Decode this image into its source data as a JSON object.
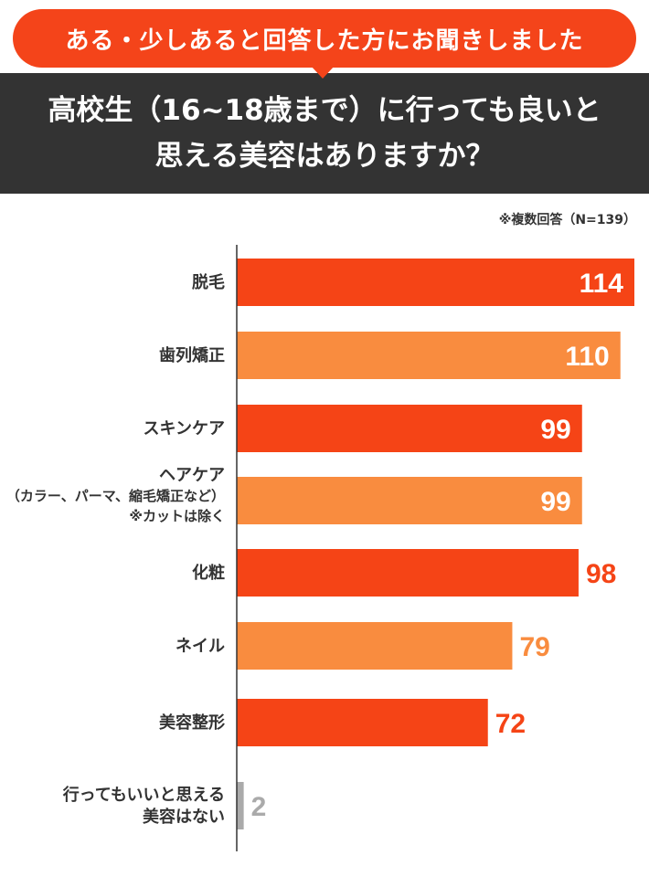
{
  "header": {
    "question_label": "ある・少しあると回答した方にお聞きしました",
    "title_line1": "高校生（16~18歳まで）に行っても良いと",
    "title_line2": "思える美容はありますか？",
    "note": "※複数回答（N=139）"
  },
  "chart_data": {
    "type": "bar",
    "orientation": "horizontal",
    "xlim": [
      0,
      114
    ],
    "grid": false,
    "categories": [
      [
        "脱毛"
      ],
      [
        "歯列矯正"
      ],
      [
        "スキンケア"
      ],
      [
        "ヘアケア",
        "（カラー、パーマ、縮毛矯正など）",
        "※カットは除く"
      ],
      [
        "化粧"
      ],
      [
        "ネイル"
      ],
      [
        "美容整形"
      ],
      [
        "行ってもいいと思える",
        "美容はない"
      ]
    ],
    "values": [
      114,
      110,
      99,
      99,
      98,
      79,
      72,
      2
    ],
    "colors": [
      "#f54416",
      "#f98c3f",
      "#f54416",
      "#f98c3f",
      "#f54416",
      "#f98c3f",
      "#f54416",
      "#aaaaaa"
    ]
  }
}
